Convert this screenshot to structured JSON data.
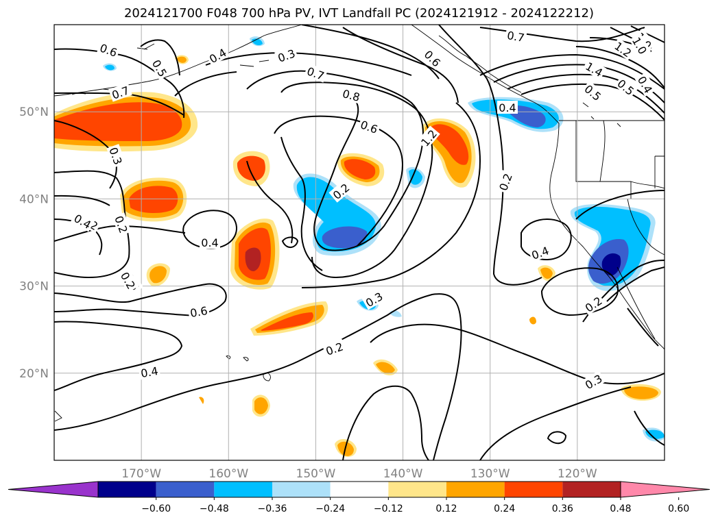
{
  "title": "2024121700 F048 700 hPa PV, IVT Landfall PC (2024121912 - 2024122212)",
  "map": {
    "lon_range": [
      -180,
      -110
    ],
    "lat_range": [
      10,
      60
    ],
    "lat_labels": [
      "20°N",
      "30°N",
      "40°N",
      "50°N"
    ],
    "lat_values": [
      20,
      30,
      40,
      50
    ],
    "lon_labels": [
      "170°W",
      "160°W",
      "150°W",
      "140°W",
      "130°W",
      "120°W"
    ],
    "lon_values": [
      -170,
      -160,
      -150,
      -140,
      -130,
      -120
    ],
    "gridlines": true
  },
  "colorbar": {
    "ticks": [
      "−0.60",
      "−0.48",
      "−0.36",
      "−0.24",
      "−0.12",
      "0.12",
      "0.24",
      "0.36",
      "0.48",
      "0.60"
    ],
    "colors": [
      "#9933cc",
      "#00008b",
      "#3a5fcd",
      "#00bfff",
      "#ade1f9",
      "#ffffff",
      "#ffe68a",
      "#ffa500",
      "#ff4500",
      "#b22222",
      "#ff88aa"
    ],
    "extend": "both"
  },
  "shading_colors": {
    "blue_light": "#ade1f9",
    "blue": "#00bfff",
    "blue_mid": "#3a5fcd",
    "navy": "#00008b",
    "yellow": "#ffe68a",
    "orange": "#ffa500",
    "red_orange": "#ff4500",
    "dark_red": "#b22222"
  },
  "contour_labels": [
    "0.6",
    "0.5",
    "0.4",
    "0.7",
    "0.3",
    "0.2",
    "0.4",
    "0.5",
    "0.6",
    "0.7",
    "0.8",
    "0.6",
    "1.2",
    "0.6",
    "0.7",
    "1.0",
    "1.0",
    "1.2",
    "1.4",
    "0.5",
    "0.4",
    "0.5",
    "0.4",
    "0.2",
    "0.3",
    "0.3",
    "0.2",
    "0.4",
    "0.2",
    "0.2",
    "0.2",
    "0.4",
    "0.4",
    "0.2",
    "0.3"
  ]
}
